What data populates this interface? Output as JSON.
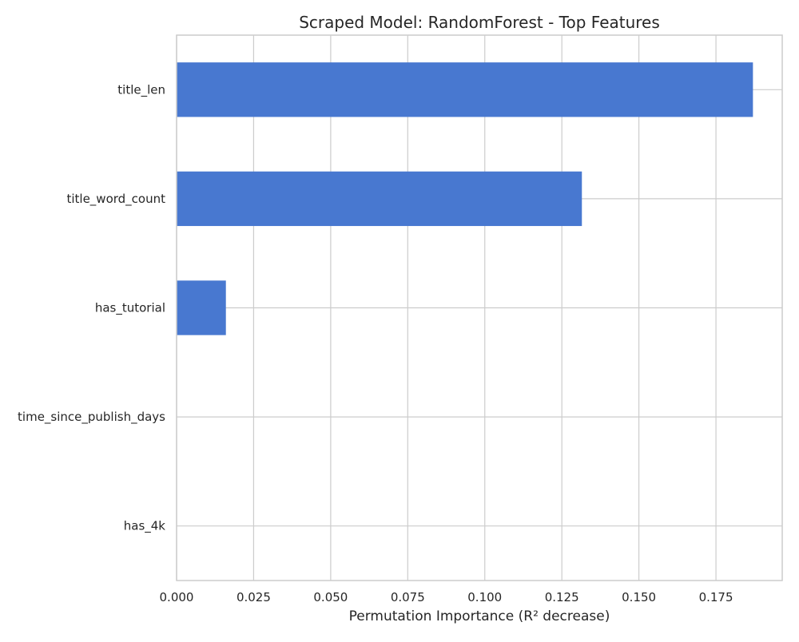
{
  "chart_data": {
    "type": "bar",
    "orientation": "horizontal",
    "title": "Scraped Model: RandomForest - Top Features",
    "xlabel": "Permutation Importance (R² decrease)",
    "ylabel": "",
    "categories": [
      "title_len",
      "title_word_count",
      "has_tutorial",
      "time_since_publish_days",
      "has_4k"
    ],
    "values": [
      0.187,
      0.1315,
      0.016,
      0.0,
      0.0
    ],
    "xlim": [
      0.0,
      0.1965
    ],
    "xticks": [
      "0.000",
      "0.025",
      "0.050",
      "0.075",
      "0.100",
      "0.125",
      "0.150",
      "0.175"
    ],
    "grid": true,
    "bar_color": "#4878d0",
    "grid_color": "#cccccc"
  }
}
